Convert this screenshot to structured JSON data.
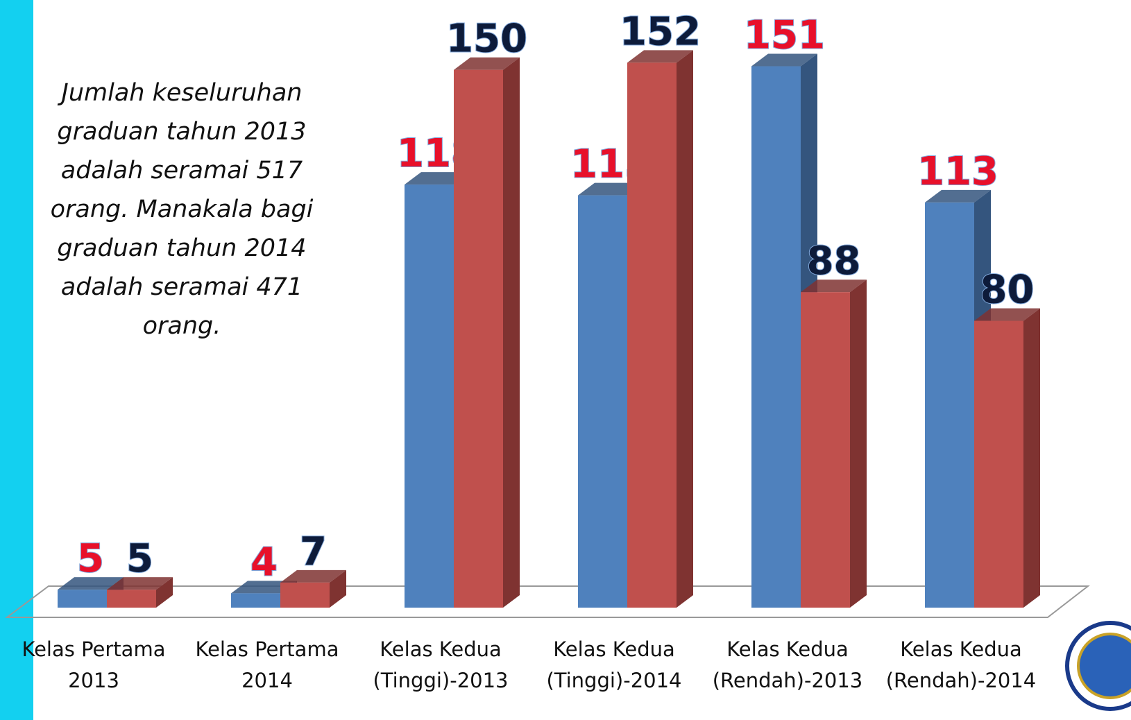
{
  "chart_data": {
    "type": "bar3d",
    "annotation": "Jumlah keseluruhan graduan tahun 2013 adalah seramai 517 orang. Manakala bagi graduan tahun 2014 adalah seramai 471 orang.",
    "categories": [
      "Kelas Pertama 2013",
      "Kelas Pertama 2014",
      "Kelas Kedua (Tinggi)-2013",
      "Kelas Kedua (Tinggi)-2014",
      "Kelas Kedua (Rendah)-2013",
      "Kelas Kedua (Rendah)-2014"
    ],
    "series": [
      {
        "color": "#4f81bd",
        "side_color": "#34557e",
        "label_color": "#e8102a",
        "values": [
          5,
          4,
          118,
          115,
          151,
          113
        ]
      },
      {
        "color": "#c0504d",
        "side_color": "#7f3331",
        "label_color": "#0d1b3a",
        "values": [
          5,
          7,
          150,
          152,
          88,
          80
        ]
      }
    ],
    "ylim": [
      0,
      160
    ]
  }
}
